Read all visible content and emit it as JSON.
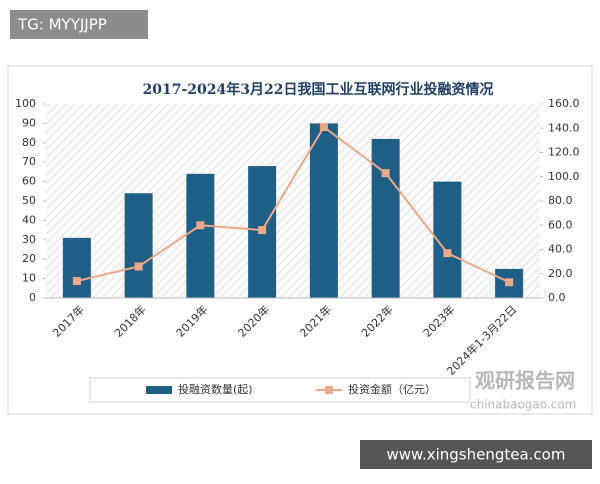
{
  "watermark_top": "TG: MYYJJPP",
  "brand": "观研报告网",
  "brand_url": "chinabaogao.com",
  "footer": "www.xingshengtea.com",
  "chart_data": {
    "type": "bar",
    "title": "2017-2024年3月22日我国工业互联网行业投融资情况",
    "categories": [
      "2017年",
      "2018年",
      "2019年",
      "2020年",
      "2021年",
      "2022年",
      "2023年",
      "2024年1-3月22日"
    ],
    "series": [
      {
        "name": "投融资数量(起)",
        "type": "bar",
        "color": "#1f5f86",
        "values": [
          31,
          54,
          64,
          68,
          90,
          82,
          60,
          15
        ]
      },
      {
        "name": "投资金额（亿元）",
        "type": "line",
        "axis": "y2",
        "color": "#e9a98a",
        "values": [
          14,
          26,
          60,
          56,
          141,
          103,
          37,
          13
        ]
      }
    ],
    "ylim": [
      0,
      100
    ],
    "yticks": [
      0,
      10,
      20,
      30,
      40,
      50,
      60,
      70,
      80,
      90,
      100
    ],
    "y2lim": [
      0,
      160
    ],
    "y2ticks": [
      {
        "value": 0,
        "label": "0.0"
      },
      {
        "value": 20,
        "label": "20.0"
      },
      {
        "value": 40,
        "label": "40.0"
      },
      {
        "value": 60,
        "label": "60.0"
      },
      {
        "value": 80,
        "label": "80.0"
      },
      {
        "value": 100,
        "label": "100.0"
      },
      {
        "value": 120,
        "label": "120.0"
      },
      {
        "value": 140,
        "label": "140.0"
      },
      {
        "value": 160,
        "label": "160.0"
      }
    ]
  }
}
